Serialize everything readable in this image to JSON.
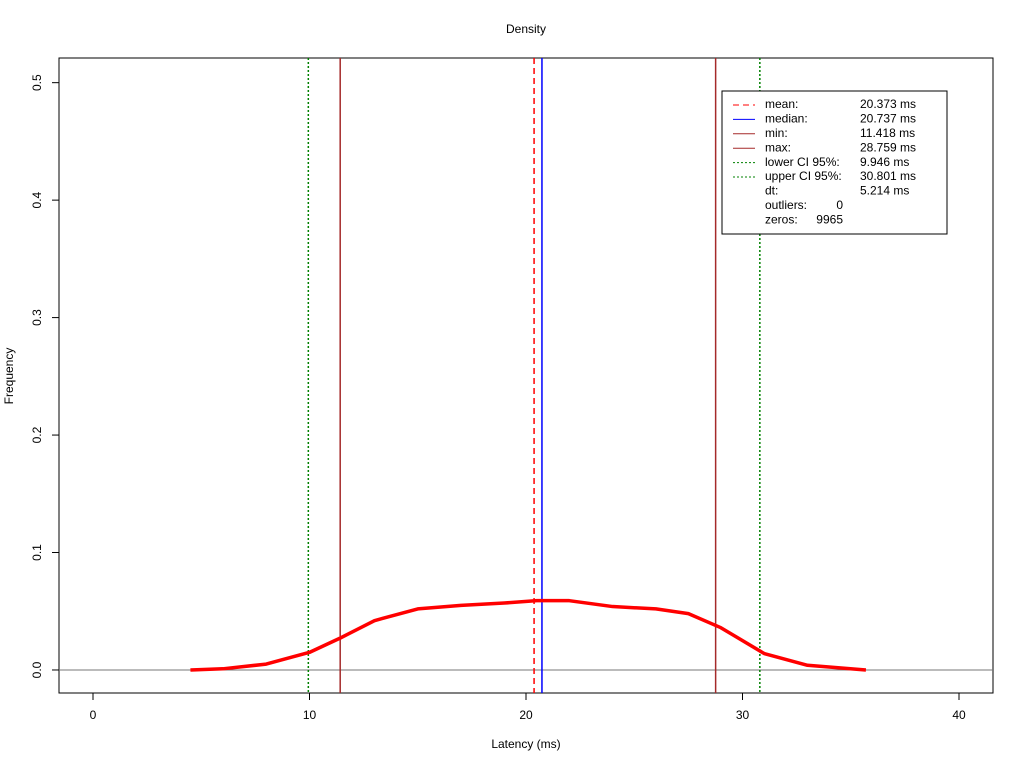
{
  "chart_data": {
    "type": "line",
    "title": "Density",
    "x_label": "Latency (ms)",
    "y_label": "Frequency",
    "x": [
      4.5,
      6,
      8,
      10,
      11.4,
      13,
      15,
      17,
      19,
      20.5,
      22,
      24,
      26,
      27.5,
      29,
      31,
      33,
      35.7
    ],
    "values": [
      0.0,
      0.001,
      0.005,
      0.015,
      0.027,
      0.042,
      0.052,
      0.055,
      0.057,
      0.059,
      0.059,
      0.054,
      0.052,
      0.048,
      0.036,
      0.014,
      0.004,
      0.0
    ],
    "color": "#ff0000",
    "xlim": [
      -1.57,
      41.57
    ],
    "ylim": [
      -0.0196,
      0.521
    ],
    "xticks": [
      0,
      10,
      20,
      30,
      40
    ],
    "yticks": [
      {
        "value": 0,
        "label": "0.0"
      },
      0.1,
      0.2,
      0.3,
      0.4,
      0.5
    ],
    "baseline": 0,
    "vlines": [
      {
        "name": "mean:",
        "value": 20.373,
        "value_label": "20.373 ms",
        "color": "#ff0000",
        "style": "dashed"
      },
      {
        "name": "median:",
        "value": 20.737,
        "value_label": "20.737 ms",
        "color": "#0000ff",
        "style": "solid"
      },
      {
        "name": "min:",
        "value": 11.418,
        "value_label": "11.418 ms",
        "color": "#a52a2a",
        "style": "solid"
      },
      {
        "name": "max:",
        "value": 28.759,
        "value_label": "28.759 ms",
        "color": "#a52a2a",
        "style": "solid"
      },
      {
        "name": "lower CI 95%:",
        "value": 9.946,
        "value_label": "9.946 ms",
        "color": "#008000",
        "style": "dotted"
      },
      {
        "name": "upper CI 95%:",
        "value": 30.801,
        "value_label": "30.801 ms",
        "color": "#008000",
        "style": "dotted"
      }
    ],
    "stats": [
      {
        "name": "dt:",
        "value": 5.214,
        "value_label": "5.214 ms"
      },
      {
        "name": "outliers:",
        "value": 0
      },
      {
        "name": "zeros:",
        "value": 9965
      }
    ]
  }
}
